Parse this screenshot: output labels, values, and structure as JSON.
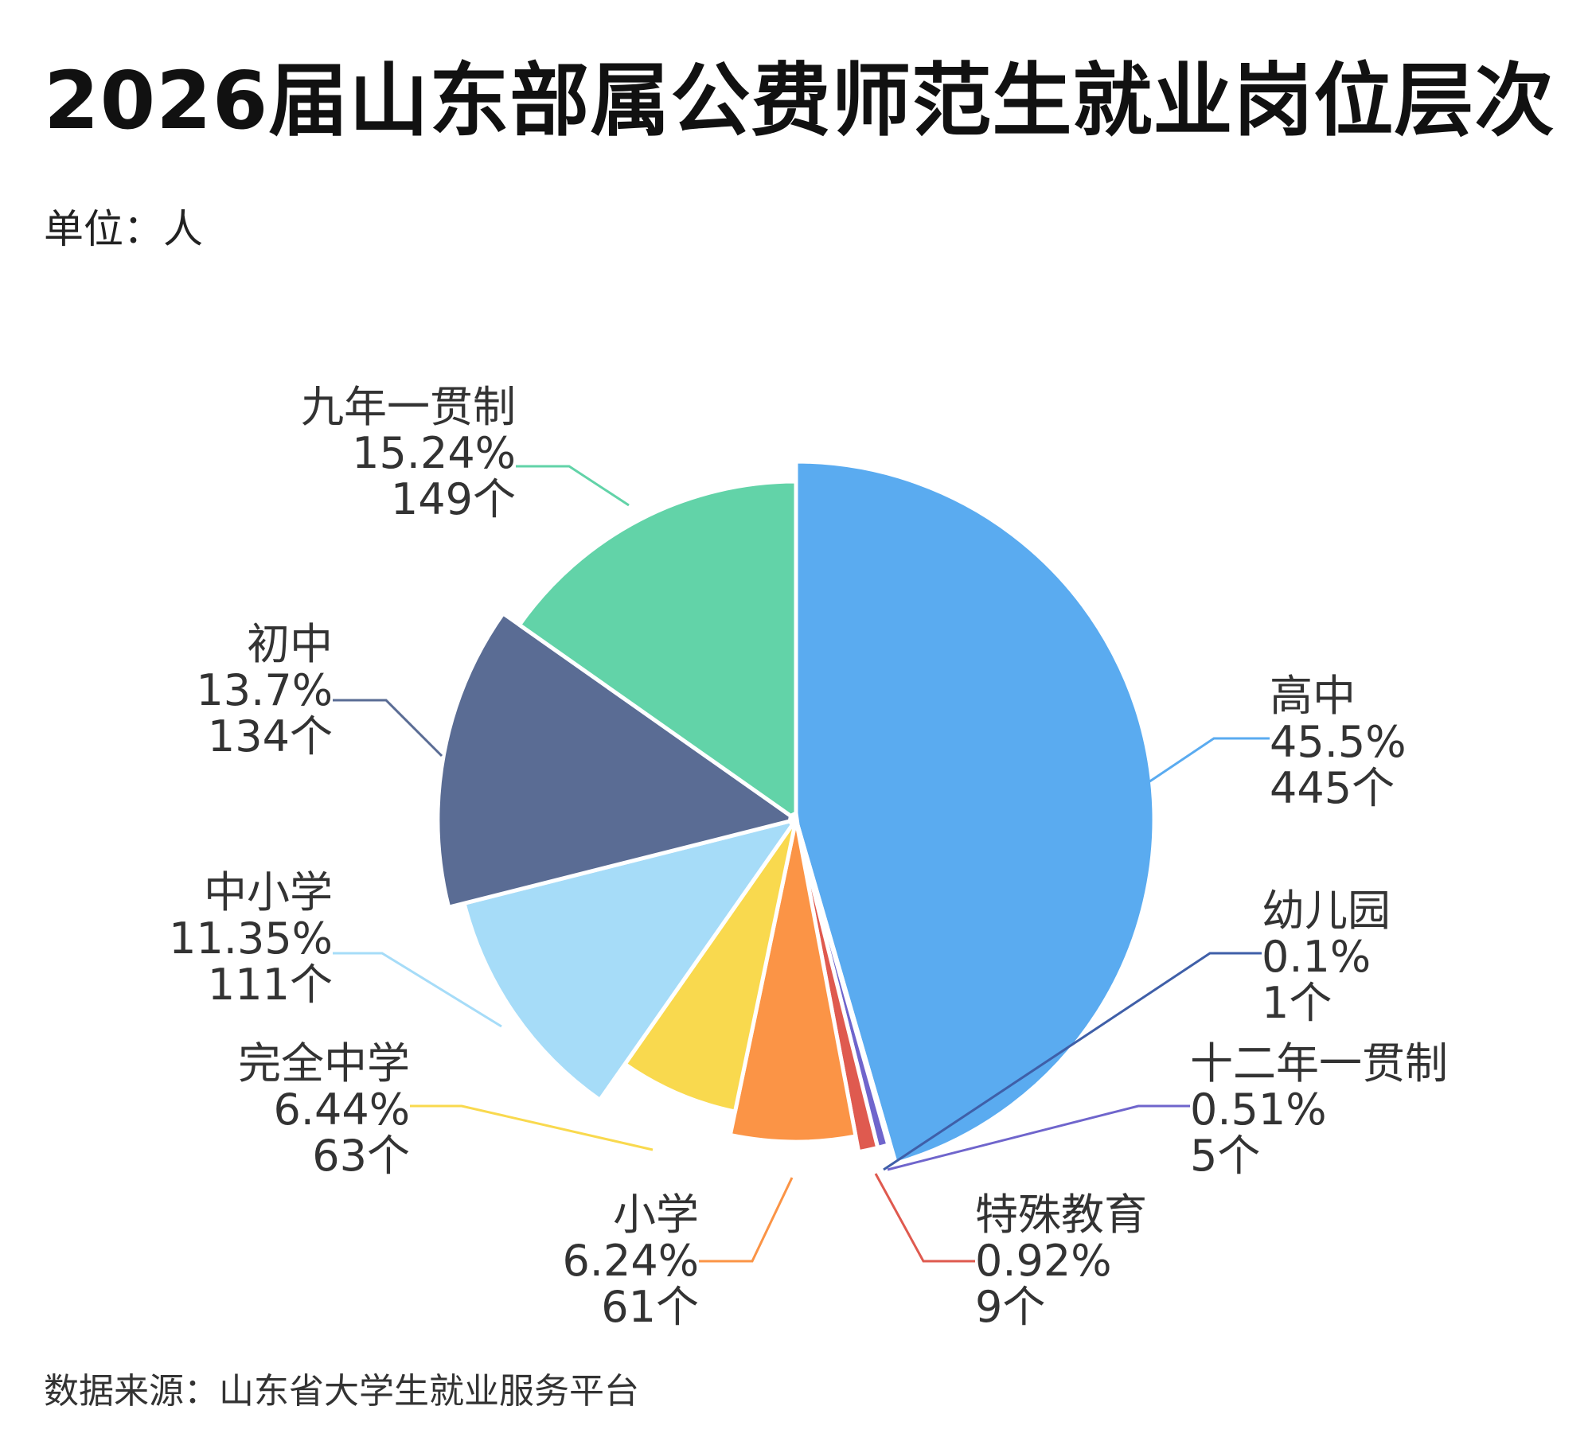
{
  "title": "2026届山东部属公费师范生就业岗位层次",
  "unit_label": "单位：人",
  "source_label": "数据来源：山东省大学生就业服务平台",
  "chart_data": {
    "type": "pie",
    "title": "2026届山东部属公费师范生就业岗位层次",
    "unit": "单位：人",
    "start_angle_deg": 0,
    "direction": "clockwise",
    "slices": [
      {
        "name": "高中",
        "percent_label": "45.5%",
        "count_label": "445个",
        "value": 445,
        "color": "#5aabf0"
      },
      {
        "name": "幼儿园",
        "percent_label": "0.1%",
        "count_label": "1个",
        "value": 1,
        "color": "#3f5fa8"
      },
      {
        "name": "十二年一贯制",
        "percent_label": "0.51%",
        "count_label": "5个",
        "value": 5,
        "color": "#6f65cc"
      },
      {
        "name": "特殊教育",
        "percent_label": "0.92%",
        "count_label": "9个",
        "value": 9,
        "color": "#df5a4f"
      },
      {
        "name": "小学",
        "percent_label": "6.24%",
        "count_label": "61个",
        "value": 61,
        "color": "#fb9446"
      },
      {
        "name": "完全中学",
        "percent_label": "6.44%",
        "count_label": "63个",
        "value": 63,
        "color": "#f9d94e"
      },
      {
        "name": "中小学",
        "percent_label": "11.35%",
        "count_label": "111个",
        "value": 111,
        "color": "#a6dcf8"
      },
      {
        "name": "初中",
        "percent_label": "13.7%",
        "count_label": "134个",
        "value": 134,
        "color": "#5a6c94"
      },
      {
        "name": "九年一贯制",
        "percent_label": "15.24%",
        "count_label": "149个",
        "value": 149,
        "color": "#62d3a8"
      }
    ]
  }
}
